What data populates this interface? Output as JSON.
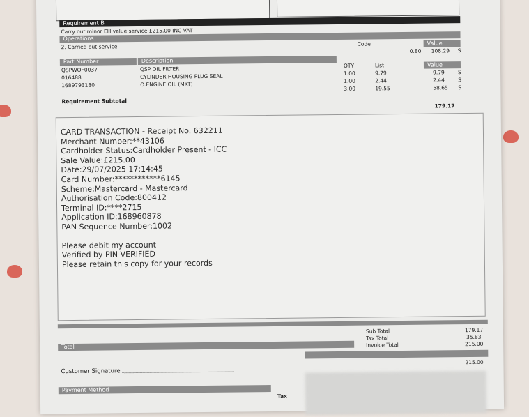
{
  "requirement": {
    "header": "Requirement B",
    "description": "Carry out minor EH value service £215.00 INC VAT",
    "operations_header": "Operations",
    "operation": "2. Carried out service",
    "code_header": "Code",
    "value_header": "Value",
    "operation_code": "0.80",
    "operation_value": "108.29",
    "operation_flag": "S"
  },
  "parts": {
    "headers": {
      "part_number": "Part Number",
      "description": "Description",
      "qty": "QTY",
      "list": "List",
      "value": "Value"
    },
    "rows": [
      {
        "part_number": "QSPWOF0037",
        "description": "QSP OIL FILTER",
        "qty": "1.00",
        "list": "9.79",
        "value": "9.79",
        "flag": "S"
      },
      {
        "part_number": "016488",
        "description": "CYLINDER HOUSING PLUG SEAL",
        "qty": "1.00",
        "list": "2.44",
        "value": "2.44",
        "flag": "S"
      },
      {
        "part_number": "1689793180",
        "description": "O:ENGINE OIL (MKT)",
        "qty": "3.00",
        "list": "19.55",
        "value": "58.65",
        "flag": "S"
      }
    ],
    "subtotal_label": "Requirement Subtotal",
    "subtotal": "179.17"
  },
  "card_transaction": {
    "lines": [
      "CARD TRANSACTION - Receipt No. 632211",
      "Merchant Number:**43106",
      "Cardholder Status:Cardholder Present - ICC",
      "Sale Value:£215.00",
      "Date:29/07/2025 17:14:45",
      "Card Number:************6145",
      "Scheme:Mastercard - Mastercard",
      "Authorisation Code:800412",
      "Terminal ID:****2715",
      "Application ID:168960878",
      "PAN Sequence Number:1002"
    ],
    "footer": [
      "Please debit my account",
      "Verified by PIN VERIFIED",
      "Please retain this copy for your records"
    ]
  },
  "totals": {
    "header": "Total",
    "sub_total_label": "Sub Total",
    "sub_total": "179.17",
    "tax_total_label": "Tax Total",
    "tax_total": "35.83",
    "invoice_total_label": "Invoice Total",
    "invoice_total": "215.00",
    "paid": "215.00"
  },
  "signature_label": "Customer Signature",
  "payment_method_header": "Payment Method",
  "tax_label": "Tax"
}
